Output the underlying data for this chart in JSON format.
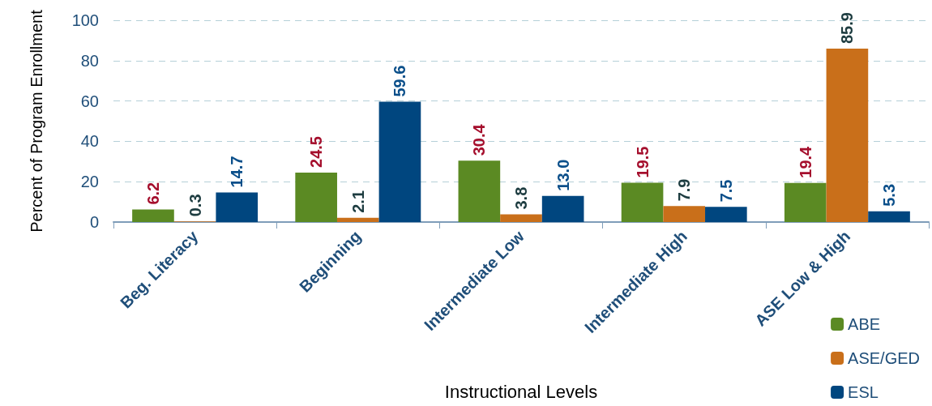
{
  "chart_data": {
    "type": "bar",
    "xlabel": "Instructional Levels",
    "ylabel": "Percent of Program Enrollment",
    "categories": [
      "Beg. Literacy",
      "Beginning",
      "Intermediate Low",
      "Intermediate High",
      "ASE Low & High"
    ],
    "series": [
      {
        "name": "ABE",
        "color": "#5b8a23",
        "values": [
          6.2,
          24.5,
          30.4,
          19.5,
          19.4
        ]
      },
      {
        "name": "ASE/GED",
        "color": "#c96f1a",
        "values": [
          0.3,
          2.1,
          3.8,
          7.9,
          85.9
        ]
      },
      {
        "name": "ESL",
        "color": "#00467f",
        "values": [
          14.7,
          59.6,
          13.0,
          7.5,
          5.3
        ],
        "value_labels": [
          "14.7",
          "59.6",
          "13.0",
          "7.5",
          "5.3"
        ]
      }
    ],
    "ylim": [
      0,
      100
    ],
    "yticks": [
      0,
      20,
      40,
      60,
      80,
      100
    ],
    "grid": "y",
    "legend": "bottom right",
    "data_labels": true
  }
}
